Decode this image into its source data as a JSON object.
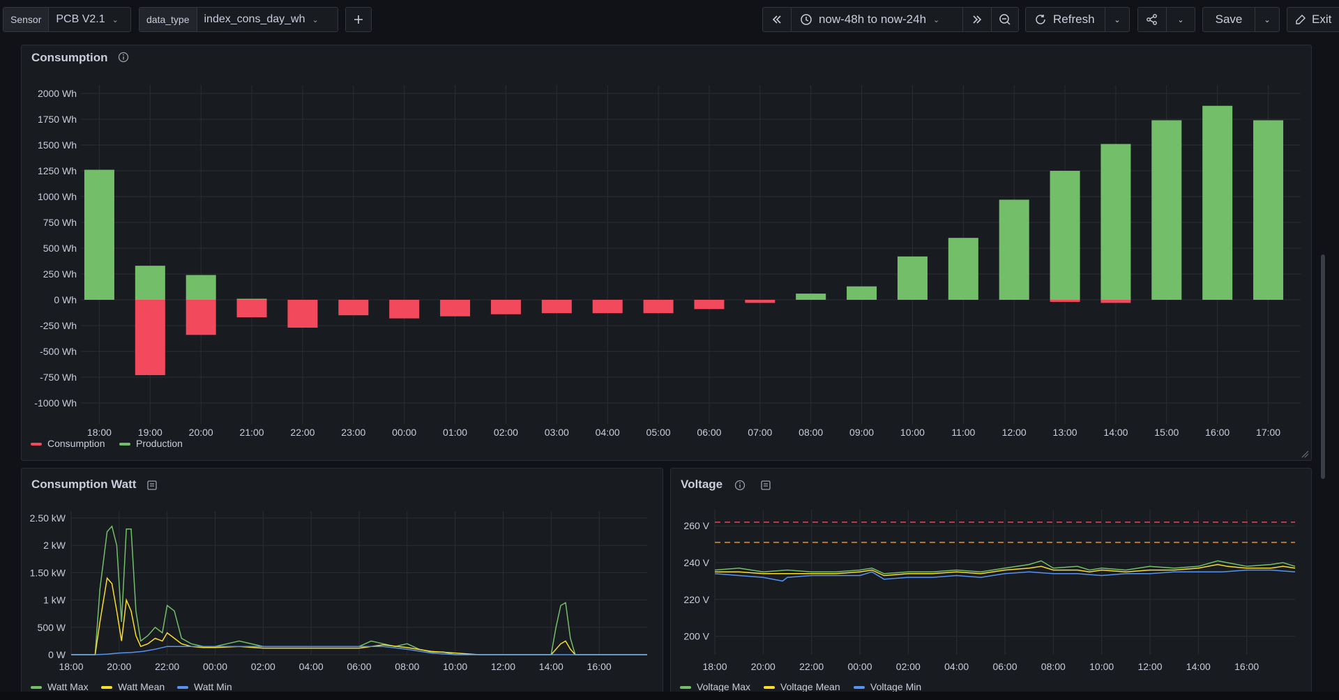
{
  "toolbar": {
    "sensor_label": "Sensor",
    "sensor_value": "PCB V2.1",
    "datatype_label": "data_type",
    "datatype_value": "index_cons_day_wh",
    "time_range": "now-48h to now-24h",
    "refresh_label": "Refresh",
    "save_label": "Save",
    "exit_label": "Exit"
  },
  "panels": {
    "consumption": {
      "title": "Consumption"
    },
    "watt": {
      "title": "Consumption Watt"
    },
    "voltage": {
      "title": "Voltage"
    }
  },
  "colors": {
    "consumption": "#f2495c",
    "production": "#73bf69",
    "series_max": "#73bf69",
    "series_mean": "#fade2a",
    "series_min": "#5794f2",
    "threshold_red": "#f2495c",
    "threshold_orange": "#ff9830"
  },
  "bottom_bar_text": "",
  "chart_data": [
    {
      "type": "bar",
      "title": "Consumption",
      "categories": [
        "18:00",
        "19:00",
        "20:00",
        "21:00",
        "22:00",
        "23:00",
        "00:00",
        "01:00",
        "02:00",
        "03:00",
        "04:00",
        "05:00",
        "06:00",
        "07:00",
        "08:00",
        "09:00",
        "10:00",
        "11:00",
        "12:00",
        "13:00",
        "14:00",
        "15:00",
        "16:00",
        "17:00"
      ],
      "series": [
        {
          "name": "Consumption",
          "values": [
            0,
            -730,
            -340,
            -170,
            -270,
            -150,
            -180,
            -160,
            -140,
            -130,
            -130,
            -130,
            -90,
            -30,
            0,
            0,
            0,
            0,
            0,
            -20,
            -30,
            0,
            0,
            0
          ]
        },
        {
          "name": "Production",
          "values": [
            1260,
            330,
            240,
            10,
            0,
            0,
            0,
            0,
            0,
            0,
            0,
            0,
            0,
            0,
            60,
            130,
            420,
            600,
            970,
            1250,
            1510,
            1740,
            1880,
            1740
          ]
        }
      ],
      "yticks": [
        "2000 Wh",
        "1750 Wh",
        "1500 Wh",
        "1250 Wh",
        "1000 Wh",
        "750 Wh",
        "500 Wh",
        "250 Wh",
        "0 Wh",
        "-250 Wh",
        "-500 Wh",
        "-750 Wh",
        "-1000 Wh"
      ],
      "ylim": [
        -1000,
        2000
      ],
      "grid": true,
      "legend": "bottom-left"
    },
    {
      "type": "line",
      "title": "Consumption Watt",
      "x_ticks": [
        "18:00",
        "20:00",
        "22:00",
        "00:00",
        "02:00",
        "04:00",
        "06:00",
        "08:00",
        "10:00",
        "12:00",
        "14:00",
        "16:00"
      ],
      "y_ticks": [
        "2.50 kW",
        "2 kW",
        "1.50 kW",
        "1 kW",
        "500 W",
        "0 W"
      ],
      "ylim": [
        0,
        2500
      ],
      "xlim_hours": [
        18,
        42
      ],
      "series": [
        {
          "name": "Watt Max",
          "x": [
            18,
            18.5,
            19,
            19.2,
            19.5,
            19.7,
            19.9,
            20.1,
            20.3,
            20.5,
            20.7,
            20.9,
            21.2,
            21.5,
            21.8,
            22,
            22.3,
            22.6,
            23,
            23.5,
            24,
            24.5,
            25,
            26,
            27,
            28,
            29,
            30,
            30.5,
            31,
            31.5,
            32,
            32.5,
            33,
            33.5,
            34,
            35,
            36,
            37,
            38,
            38.2,
            38.4,
            38.6,
            38.8,
            39,
            40,
            41,
            42
          ],
          "y": [
            0,
            0,
            0,
            1200,
            2250,
            2350,
            2000,
            600,
            2300,
            2300,
            800,
            250,
            350,
            500,
            400,
            900,
            800,
            300,
            200,
            150,
            150,
            200,
            250,
            150,
            150,
            150,
            150,
            150,
            250,
            200,
            150,
            200,
            100,
            50,
            50,
            0,
            0,
            0,
            0,
            0,
            500,
            900,
            950,
            300,
            0,
            0,
            0,
            0
          ]
        },
        {
          "name": "Watt Mean",
          "x": [
            18,
            18.5,
            19,
            19.2,
            19.5,
            19.7,
            19.9,
            20.1,
            20.3,
            20.5,
            20.7,
            20.9,
            21.2,
            21.5,
            21.8,
            22,
            22.3,
            22.6,
            23,
            23.5,
            24,
            25,
            26,
            27,
            28,
            29,
            30,
            31,
            32,
            33,
            34,
            35,
            36,
            37,
            38,
            38.4,
            38.6,
            38.8,
            39,
            40,
            41,
            42
          ],
          "y": [
            0,
            0,
            0,
            600,
            1400,
            1300,
            800,
            250,
            1000,
            800,
            350,
            150,
            200,
            300,
            250,
            400,
            300,
            200,
            150,
            130,
            130,
            150,
            120,
            120,
            120,
            120,
            120,
            180,
            130,
            60,
            30,
            0,
            0,
            0,
            0,
            200,
            250,
            100,
            0,
            0,
            0,
            0
          ]
        },
        {
          "name": "Watt Min",
          "x": [
            18,
            19,
            19.5,
            20,
            20.5,
            21,
            21.5,
            22,
            22.5,
            23,
            24,
            25,
            26,
            27,
            28,
            29,
            30,
            31,
            32,
            33,
            34,
            36,
            38,
            40,
            42
          ],
          "y": [
            0,
            0,
            10,
            30,
            40,
            60,
            100,
            150,
            150,
            150,
            150,
            150,
            150,
            150,
            150,
            150,
            150,
            150,
            100,
            30,
            0,
            0,
            0,
            0,
            0
          ]
        }
      ],
      "grid": true,
      "legend": "bottom-left"
    },
    {
      "type": "line",
      "title": "Voltage",
      "x_ticks": [
        "18:00",
        "20:00",
        "22:00",
        "00:00",
        "02:00",
        "04:00",
        "06:00",
        "08:00",
        "10:00",
        "12:00",
        "14:00",
        "16:00"
      ],
      "y_ticks": [
        "260 V",
        "240 V",
        "220 V",
        "200 V"
      ],
      "ylim": [
        190,
        265
      ],
      "xlim_hours": [
        18,
        42
      ],
      "thresholds": [
        262,
        251
      ],
      "series": [
        {
          "name": "Voltage Max",
          "x": [
            18,
            19,
            20,
            21,
            22,
            23,
            24,
            24.5,
            25,
            26,
            27,
            28,
            29,
            30,
            31,
            31.5,
            32,
            33,
            33.5,
            34,
            35,
            36,
            37,
            38,
            38.8,
            39.2,
            40,
            41,
            41.5,
            42
          ],
          "y": [
            236,
            237,
            235,
            236,
            235,
            235,
            236,
            237,
            234,
            235,
            235,
            236,
            235,
            237,
            239,
            241,
            237,
            238,
            236,
            237,
            236,
            238,
            237,
            238,
            241,
            240,
            238,
            239,
            240,
            238
          ]
        },
        {
          "name": "Voltage Mean",
          "x": [
            18,
            19,
            20,
            21,
            22,
            23,
            24,
            24.5,
            25,
            26,
            27,
            28,
            29,
            30,
            31,
            31.5,
            32,
            33,
            33.5,
            34,
            35,
            36,
            37,
            38,
            38.8,
            39.2,
            40,
            41,
            41.5,
            42
          ],
          "y": [
            235,
            235,
            234,
            234,
            234,
            234,
            235,
            236,
            233,
            234,
            234,
            235,
            234,
            236,
            237,
            238,
            236,
            236,
            235,
            236,
            235,
            236,
            236,
            237,
            239,
            238,
            237,
            237,
            238,
            237
          ]
        },
        {
          "name": "Voltage Min",
          "x": [
            18,
            19,
            20,
            20.8,
            21,
            22,
            23,
            24,
            24.5,
            25,
            26,
            27,
            28,
            29,
            30,
            31,
            32,
            33,
            34,
            35,
            36,
            37,
            38,
            39,
            40,
            41,
            42
          ],
          "y": [
            234,
            233,
            232,
            230,
            232,
            233,
            233,
            233,
            235,
            231,
            232,
            232,
            233,
            232,
            234,
            235,
            234,
            234,
            233,
            234,
            234,
            235,
            235,
            235,
            236,
            236,
            235
          ]
        }
      ],
      "grid": true,
      "legend": "bottom-left"
    }
  ]
}
